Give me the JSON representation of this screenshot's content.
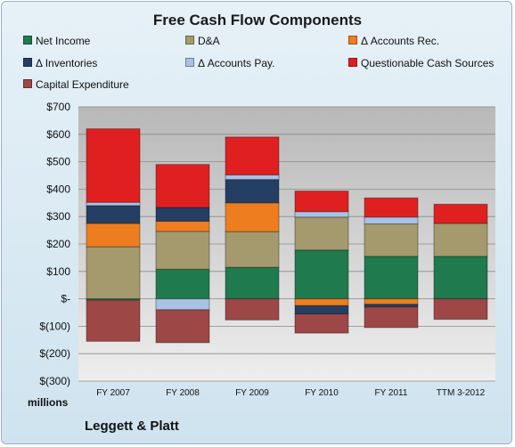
{
  "chart_data": {
    "type": "bar",
    "stacked": true,
    "title": "Free Cash Flow Components",
    "ylabel": "",
    "unit_label": "millions",
    "ylim": [
      -300,
      700
    ],
    "yticks": [
      -300,
      -200,
      -100,
      0,
      100,
      200,
      300,
      400,
      500,
      600,
      700
    ],
    "ytick_labels": [
      "$(300)",
      "$(200)",
      "$(100)",
      "$-",
      "$100",
      "$200",
      "$300",
      "$400",
      "$500",
      "$600",
      "$700"
    ],
    "categories": [
      "FY 2007",
      "FY 2008",
      "FY 2009",
      "FY 2010",
      "FY 2011",
      "TTM 3-2012"
    ],
    "legend_position": "top",
    "grid": true,
    "series": [
      {
        "name": "Net Income",
        "color": "#1f7a4d",
        "values": [
          -5,
          108,
          115,
          178,
          155,
          155
        ]
      },
      {
        "name": "D&A",
        "color": "#a49a6e",
        "values": [
          190,
          138,
          130,
          120,
          118,
          120
        ]
      },
      {
        "name": "Δ Accounts Rec.",
        "color": "#ee7d1f",
        "values": [
          85,
          37,
          105,
          -25,
          -20,
          0
        ]
      },
      {
        "name": "Δ Inventories",
        "color": "#253e63",
        "values": [
          65,
          50,
          85,
          -30,
          -10,
          0
        ]
      },
      {
        "name": "Δ Accounts Pay.",
        "color": "#a9c1e4",
        "values": [
          12,
          -40,
          17,
          20,
          25,
          0
        ]
      },
      {
        "name": "Questionable Cash Sources",
        "color": "#e02020",
        "values": [
          268,
          157,
          138,
          75,
          70,
          70
        ]
      },
      {
        "name": "Capital Expenditure",
        "color": "#9e4747",
        "values": [
          -150,
          -120,
          -77,
          -70,
          -75,
          -75
        ]
      }
    ]
  },
  "brand": "Leggett & Platt"
}
